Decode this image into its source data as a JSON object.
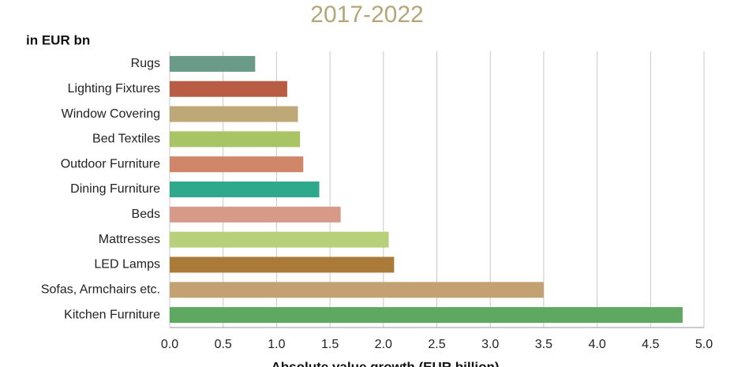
{
  "chart_data": {
    "type": "bar",
    "orientation": "horizontal",
    "title": "2017-2022",
    "subtitle": "in EUR bn",
    "x_label": "Absolute value growth (EUR billion)",
    "categories": [
      "Rugs",
      "Lighting Fixtures",
      "Window Covering",
      "Bed Textiles",
      "Outdoor Furniture",
      "Dining Furniture",
      "Beds",
      "Mattresses",
      "LED Lamps",
      "Sofas, Armchairs etc.",
      "Kitchen Furniture"
    ],
    "values": [
      0.8,
      1.1,
      1.2,
      1.22,
      1.25,
      1.4,
      1.6,
      2.05,
      2.1,
      3.5,
      4.8
    ],
    "colors": [
      "#6a9a88",
      "#b85d44",
      "#bea877",
      "#a9c465",
      "#d08668",
      "#2ea98c",
      "#d79a88",
      "#b9d07a",
      "#a97a38",
      "#c4a172",
      "#5ea862"
    ],
    "xlim": [
      0,
      5
    ],
    "xticks": [
      {
        "value": 0,
        "label": "0.0"
      },
      0.5,
      {
        "value": 1,
        "label": "1.0"
      },
      1.5,
      {
        "value": 2,
        "label": "2.0"
      },
      2.5,
      {
        "value": 3,
        "label": "3.0"
      },
      3.5,
      {
        "value": 4,
        "label": "4.0"
      },
      4.5,
      {
        "value": 5,
        "label": "5.0"
      }
    ],
    "grid": true
  }
}
